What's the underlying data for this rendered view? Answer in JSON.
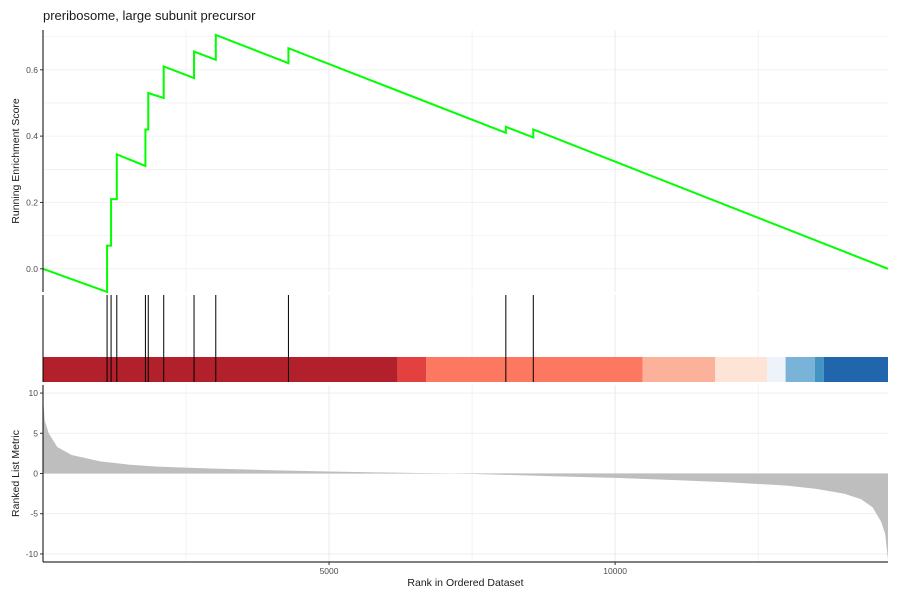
{
  "title": "preribosome, large subunit precursor",
  "chart_data": {
    "type": "line",
    "title": "preribosome, large subunit precursor",
    "xlabel": "Rank in Ordered Dataset",
    "xlim": [
      0,
      14770
    ],
    "x_ticks": [
      5000,
      10000
    ],
    "grid": true,
    "panels": {
      "enrichment": {
        "ylabel": "Running Enrichment Score",
        "ylim": [
          -0.07,
          0.72
        ],
        "y_ticks": [
          0.0,
          0.2,
          0.4,
          0.6
        ],
        "line_color": "#00ff00",
        "points": [
          [
            0,
            0.0
          ],
          [
            1120,
            -0.07
          ],
          [
            1120,
            0.07
          ],
          [
            1190,
            0.07
          ],
          [
            1190,
            0.21
          ],
          [
            1290,
            0.21
          ],
          [
            1290,
            0.345
          ],
          [
            1790,
            0.31
          ],
          [
            1790,
            0.42
          ],
          [
            1840,
            0.42
          ],
          [
            1840,
            0.53
          ],
          [
            2110,
            0.515
          ],
          [
            2110,
            0.61
          ],
          [
            2640,
            0.575
          ],
          [
            2640,
            0.655
          ],
          [
            3020,
            0.63
          ],
          [
            3020,
            0.705
          ],
          [
            4290,
            0.62
          ],
          [
            4290,
            0.665
          ],
          [
            8090,
            0.41
          ],
          [
            8090,
            0.428
          ],
          [
            8570,
            0.396
          ],
          [
            8570,
            0.42
          ],
          [
            14770,
            0.0
          ]
        ]
      },
      "hits": {
        "positions": [
          1120,
          1190,
          1290,
          1790,
          1840,
          2110,
          2640,
          3020,
          4290,
          8090,
          8570
        ]
      },
      "color_bar": {
        "segments": [
          {
            "from": 0,
            "to": 6200,
            "color": "#b2212b"
          },
          {
            "from": 6200,
            "to": 6700,
            "color": "#e34040"
          },
          {
            "from": 6700,
            "to": 10480,
            "color": "#fc7860"
          },
          {
            "from": 10480,
            "to": 11750,
            "color": "#fcb29a"
          },
          {
            "from": 11750,
            "to": 12660,
            "color": "#fee3d7"
          },
          {
            "from": 12660,
            "to": 12980,
            "color": "#eef3f9"
          },
          {
            "from": 12980,
            "to": 13490,
            "color": "#79b3d8"
          },
          {
            "from": 13490,
            "to": 13650,
            "color": "#4393c3"
          },
          {
            "from": 13650,
            "to": 14770,
            "color": "#2166ac"
          }
        ]
      },
      "ranked_metric": {
        "ylabel": "Ranked List Metric",
        "ylim": [
          -11,
          11
        ],
        "y_ticks": [
          10,
          5,
          0,
          -5,
          -10
        ],
        "fill_color": "#bebebe",
        "points": [
          [
            0,
            9.5
          ],
          [
            30,
            6.6
          ],
          [
            100,
            5.0
          ],
          [
            250,
            3.3
          ],
          [
            500,
            2.3
          ],
          [
            1000,
            1.5
          ],
          [
            1500,
            1.1
          ],
          [
            2000,
            0.85
          ],
          [
            3000,
            0.6
          ],
          [
            4000,
            0.4
          ],
          [
            5000,
            0.25
          ],
          [
            6000,
            0.12
          ],
          [
            7000,
            0.02
          ],
          [
            7500,
            -0.05
          ],
          [
            8000,
            -0.15
          ],
          [
            9000,
            -0.35
          ],
          [
            10000,
            -0.55
          ],
          [
            11000,
            -0.8
          ],
          [
            12000,
            -1.1
          ],
          [
            12500,
            -1.3
          ],
          [
            13000,
            -1.5
          ],
          [
            13500,
            -1.9
          ],
          [
            14000,
            -2.5
          ],
          [
            14300,
            -3.2
          ],
          [
            14500,
            -4.2
          ],
          [
            14650,
            -6.0
          ],
          [
            14720,
            -7.5
          ],
          [
            14770,
            -10.7
          ]
        ]
      }
    }
  }
}
